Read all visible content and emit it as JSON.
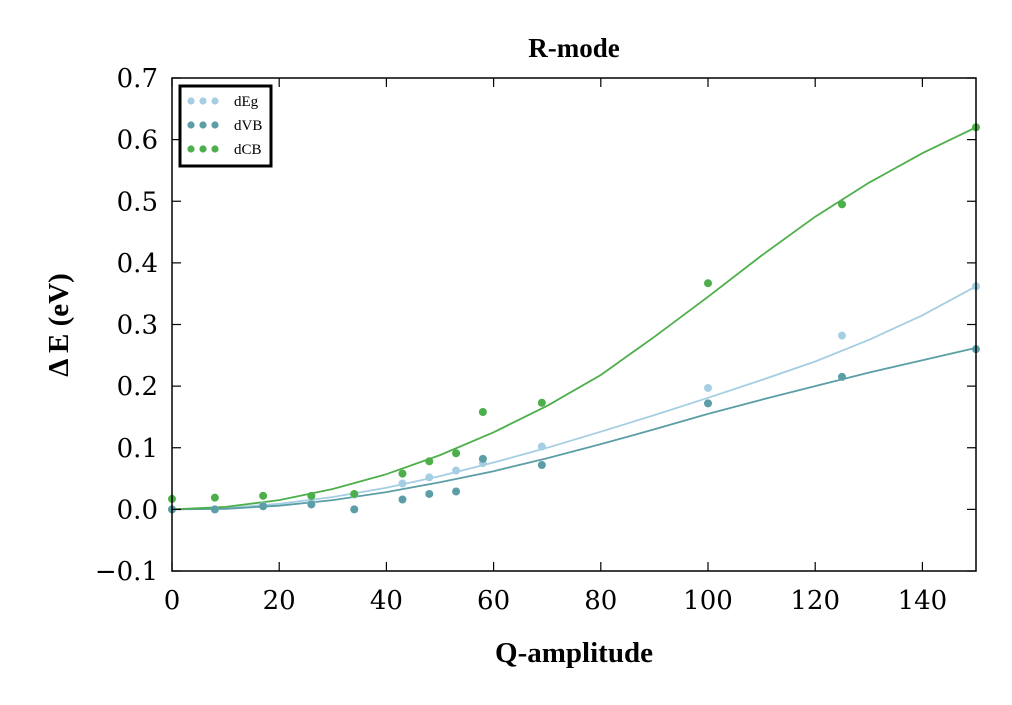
{
  "chart_data": {
    "type": "scatter",
    "title": "R-mode",
    "xlabel": "Q-amplitude",
    "ylabel": "Δ E (eV)",
    "xlim": [
      0,
      150
    ],
    "ylim": [
      -0.1,
      0.7
    ],
    "xticks": [
      0,
      20,
      40,
      60,
      80,
      100,
      120,
      140
    ],
    "yticks": [
      -0.1,
      0.0,
      0.1,
      0.2,
      0.3,
      0.4,
      0.5,
      0.6,
      0.7
    ],
    "xtick_labels": [
      "0",
      "20",
      "40",
      "60",
      "80",
      "100",
      "120",
      "140"
    ],
    "ytick_labels": [
      "−0.1",
      "0.0",
      "0.1",
      "0.2",
      "0.3",
      "0.4",
      "0.5",
      "0.6",
      "0.7"
    ],
    "grid": false,
    "legend_position": "top-left",
    "series": [
      {
        "name": "dEg",
        "color": "#a6cee3",
        "x": [
          0,
          8,
          17,
          26,
          34,
          43,
          48,
          53,
          58,
          69,
          100,
          125,
          150
        ],
        "y": [
          0.0,
          0.0,
          0.006,
          0.012,
          0.024,
          0.042,
          0.052,
          0.063,
          0.075,
          0.102,
          0.197,
          0.282,
          0.362
        ],
        "fit_x": [
          0,
          10,
          20,
          30,
          40,
          50,
          60,
          70,
          80,
          90,
          100,
          110,
          120,
          130,
          140,
          150
        ],
        "fit_y": [
          0.0,
          0.002,
          0.009,
          0.02,
          0.035,
          0.054,
          0.076,
          0.1,
          0.126,
          0.153,
          0.181,
          0.21,
          0.24,
          0.275,
          0.315,
          0.362
        ]
      },
      {
        "name": "dVB",
        "color": "#5b9ea6",
        "x": [
          0,
          8,
          17,
          26,
          34,
          43,
          48,
          53,
          58,
          69,
          100,
          125,
          150
        ],
        "y": [
          0.0,
          0.0,
          0.005,
          0.008,
          0.0,
          0.016,
          0.025,
          0.029,
          0.082,
          0.072,
          0.172,
          0.215,
          0.26
        ],
        "fit_x": [
          0,
          10,
          20,
          30,
          40,
          50,
          60,
          70,
          80,
          90,
          100,
          110,
          120,
          130,
          140,
          150
        ],
        "fit_y": [
          0.0,
          0.001,
          0.006,
          0.015,
          0.028,
          0.044,
          0.062,
          0.083,
          0.106,
          0.13,
          0.155,
          0.178,
          0.2,
          0.222,
          0.242,
          0.262
        ]
      },
      {
        "name": "dCB",
        "color": "#4daf4a",
        "x": [
          0,
          8,
          17,
          26,
          34,
          43,
          48,
          53,
          58,
          69,
          100,
          125,
          150
        ],
        "y": [
          0.017,
          0.019,
          0.022,
          0.022,
          0.025,
          0.058,
          0.078,
          0.091,
          0.158,
          0.173,
          0.367,
          0.495,
          0.62
        ],
        "fit_x": [
          0,
          10,
          20,
          30,
          40,
          50,
          60,
          70,
          80,
          90,
          100,
          110,
          120,
          130,
          140,
          150
        ],
        "fit_y": [
          0.0,
          0.004,
          0.015,
          0.033,
          0.057,
          0.088,
          0.125,
          0.168,
          0.218,
          0.28,
          0.345,
          0.412,
          0.475,
          0.53,
          0.578,
          0.62
        ]
      }
    ]
  }
}
